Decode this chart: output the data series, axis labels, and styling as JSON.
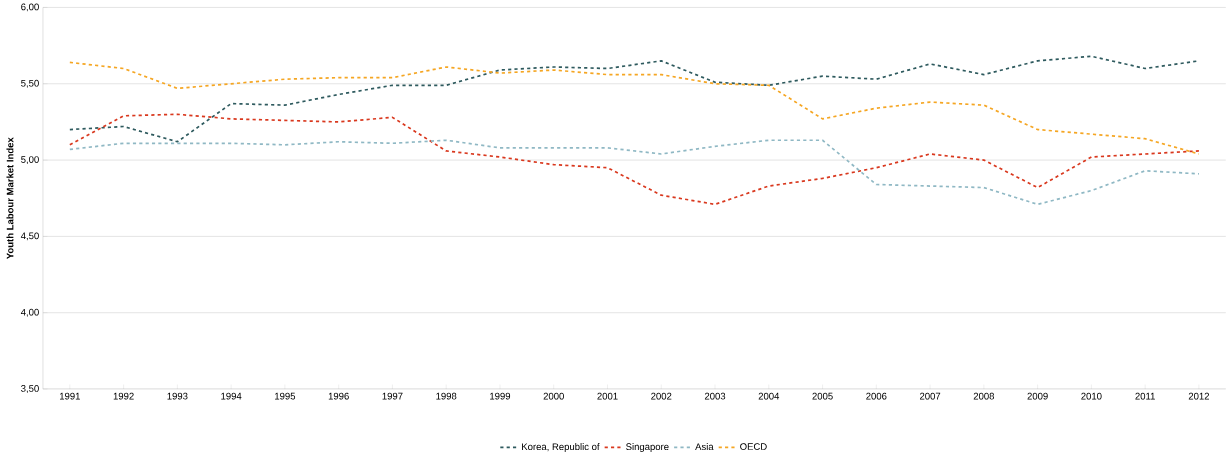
{
  "chart_data": {
    "type": "line",
    "ylabel": "Youth Labour Market Index",
    "categories": [
      "1991",
      "1992",
      "1993",
      "1994",
      "1995",
      "1996",
      "1997",
      "1998",
      "1999",
      "2000",
      "2001",
      "2002",
      "2003",
      "2004",
      "2005",
      "2006",
      "2007",
      "2008",
      "2009",
      "2010",
      "2011",
      "2012"
    ],
    "series": [
      {
        "name": "Korea, Republic of",
        "color": "#2e5a5e",
        "values": [
          5.2,
          5.22,
          5.12,
          5.37,
          5.36,
          5.43,
          5.49,
          5.49,
          5.59,
          5.61,
          5.6,
          5.65,
          5.51,
          5.49,
          5.55,
          5.53,
          5.63,
          5.56,
          5.65,
          5.68,
          5.6,
          5.65
        ]
      },
      {
        "name": "Singapore",
        "color": "#d9381e",
        "values": [
          5.1,
          5.29,
          5.3,
          5.27,
          5.26,
          5.25,
          5.28,
          5.06,
          5.02,
          4.97,
          4.95,
          4.77,
          4.71,
          4.83,
          4.88,
          4.95,
          5.04,
          5.0,
          4.82,
          5.02,
          5.04,
          5.06
        ]
      },
      {
        "name": "Asia",
        "color": "#8fb8c4",
        "values": [
          5.07,
          5.11,
          5.11,
          5.11,
          5.1,
          5.12,
          5.11,
          5.13,
          5.08,
          5.08,
          5.08,
          5.04,
          5.09,
          5.13,
          5.13,
          4.84,
          4.83,
          4.82,
          4.71,
          4.8,
          4.93,
          4.91
        ]
      },
      {
        "name": "OECD",
        "color": "#f5a623",
        "values": [
          5.64,
          5.6,
          5.47,
          5.5,
          5.53,
          5.54,
          5.54,
          5.61,
          5.57,
          5.59,
          5.56,
          5.56,
          5.5,
          5.49,
          5.27,
          5.34,
          5.38,
          5.36,
          5.2,
          5.17,
          5.14,
          5.04
        ]
      }
    ],
    "ylim": [
      3.5,
      6
    ],
    "yticks": [
      {
        "value": 3.5,
        "label": "3,50"
      },
      {
        "value": 4,
        "label": "4,00"
      },
      {
        "value": 4.5,
        "label": "4,50"
      },
      {
        "value": 5,
        "label": "5,00"
      },
      {
        "value": 5.5,
        "label": "5,50"
      },
      {
        "value": 6,
        "label": "6,00"
      }
    ],
    "grid": "y",
    "legend": "bottom",
    "line_style": "dashed",
    "marker": "none"
  }
}
